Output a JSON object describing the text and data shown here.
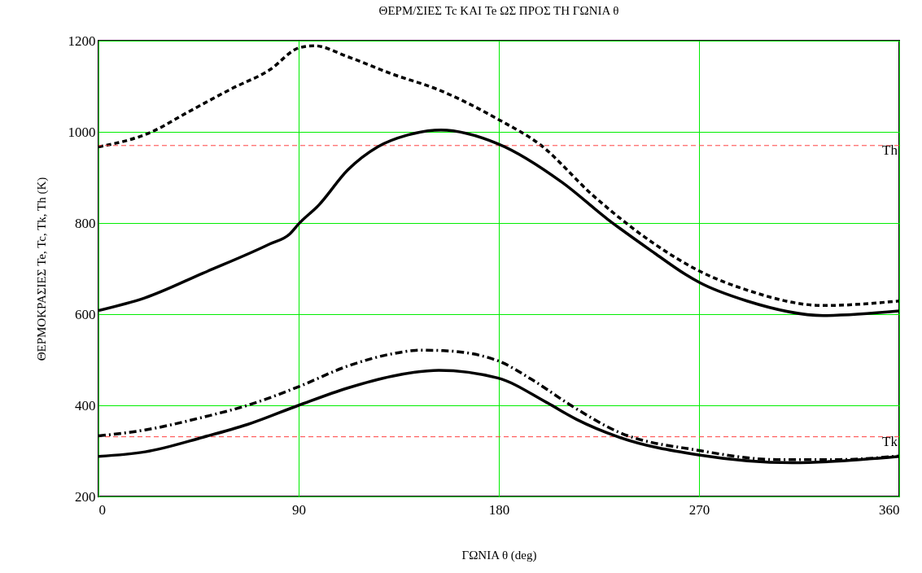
{
  "chart_data": {
    "type": "line",
    "title": "ΘΕΡΜ/ΣΙΕΣ Tc ΚΑΙ Te ΩΣ ΠΡΟΣ ΤΗ ΓΩΝΙΑ θ",
    "xlabel": "ΓΩΝΙΑ θ (deg)",
    "ylabel": "ΘΕΡΜΟΚΡΑΣΙΕΣ Te, Tc, Tk, Th (K)",
    "xlim": [
      0,
      360
    ],
    "xticks": [
      0,
      90,
      180,
      270,
      360
    ],
    "ylim": [
      200,
      1200
    ],
    "yticks": [
      200,
      400,
      600,
      800,
      1000,
      1200
    ],
    "grid": true,
    "series": [
      {
        "color": "#000000",
        "line_style": "dashed",
        "x": [
          0,
          23.5,
          40.5,
          60,
          77,
          90,
          97,
          112,
          132,
          153,
          179.5,
          198.8,
          222,
          250,
          270,
          291.5,
          326,
          360
        ],
        "values": [
          967,
          999,
          1044,
          1095,
          1136,
          1184,
          1189,
          1165,
          1127,
          1092,
          1028,
          971,
          862,
          754,
          695,
          653,
          619,
          629
        ]
      },
      {
        "color": "#000000",
        "line_style": "solid",
        "x": [
          0,
          21,
          47,
          77,
          86,
          90,
          99,
          112,
          125.5,
          139,
          154,
          179.5,
          208.5,
          229,
          250,
          264,
          270,
          291.5,
          326,
          360
        ],
        "values": [
          608,
          636,
          690,
          754,
          776,
          798,
          839,
          916,
          967,
          993,
          1004,
          974,
          889,
          808,
          734,
          687,
          670,
          629,
          597,
          607
        ]
      },
      {
        "color": "#000000",
        "line_style": "dashdot",
        "x": [
          0,
          21,
          47,
          67,
          90,
          112,
          132,
          145,
          155,
          179.5,
          194.7,
          212.7,
          233.5,
          270,
          305,
          333,
          360
        ],
        "values": [
          333,
          346,
          374,
          400,
          441,
          486,
          513,
          521,
          520,
          498,
          457,
          399,
          342,
          301,
          281,
          281,
          289
        ]
      },
      {
        "color": "#000000",
        "line_style": "solid",
        "x": [
          0,
          21,
          47,
          67,
          90,
          112,
          132,
          153,
          179.5,
          201.6,
          215,
          233.5,
          270,
          312,
          360
        ],
        "values": [
          288,
          298,
          330,
          358,
          400,
          438,
          464,
          477,
          460,
          406,
          369,
          331,
          291,
          274,
          288
        ]
      }
    ],
    "ref_lines": [
      {
        "axis": "y",
        "value": 970,
        "label": "Th",
        "color": "#ff4040",
        "line_style": "dashed"
      },
      {
        "axis": "y",
        "value": 331,
        "label": "Tk",
        "color": "#ff4040",
        "line_style": "dashed"
      }
    ]
  }
}
